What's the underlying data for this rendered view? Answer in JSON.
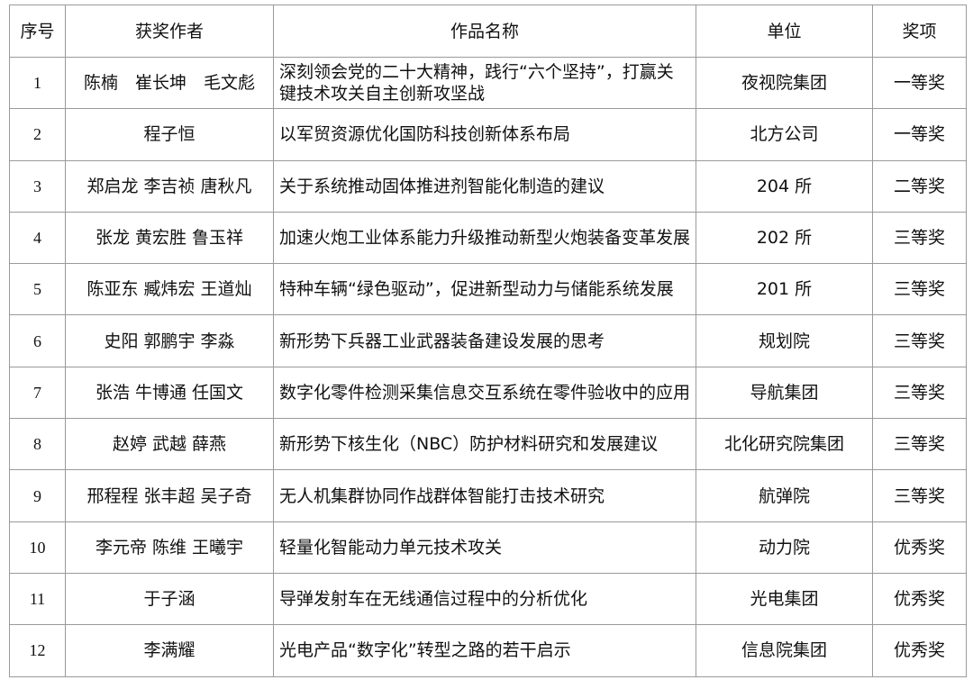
{
  "headers": [
    "序号",
    "获奖作者",
    "作品名称",
    "单位",
    "奖项"
  ],
  "rows": [
    {
      "no": "1",
      "authors": "陈楠　崔长坤　毛文彪",
      "title": "深刻领会党的二十大精神，践行“六个坚持”，打赢关键技术攻关自主创新攻坚战",
      "unit": "夜视院集团",
      "award": "一等奖"
    },
    {
      "no": "2",
      "authors": "程子恒",
      "title": "以军贸资源优化国防科技创新体系布局",
      "unit": "北方公司",
      "award": "一等奖"
    },
    {
      "no": "3",
      "authors": "郑启龙 李吉祯 唐秋凡",
      "title": "关于系统推动固体推进剂智能化制造的建议",
      "unit": "204 所",
      "award": "二等奖"
    },
    {
      "no": "4",
      "authors": "张龙 黄宏胜 鲁玉祥",
      "title": "加速火炮工业体系能力升级推动新型火炮装备变革发展",
      "unit": "202 所",
      "award": "三等奖"
    },
    {
      "no": "5",
      "authors": "陈亚东 臧炜宏 王道灿",
      "title": "特种车辆“绿色驱动”，促进新型动力与储能系统发展",
      "unit": "201 所",
      "award": "三等奖"
    },
    {
      "no": "6",
      "authors": "史阳 郭鹏宇 李淼",
      "title": "新形势下兵器工业武器装备建设发展的思考",
      "unit": "规划院",
      "award": "三等奖"
    },
    {
      "no": "7",
      "authors": "张浩 牛博通 任国文",
      "title": "数字化零件检测采集信息交互系统在零件验收中的应用",
      "unit": "导航集团",
      "award": "三等奖"
    },
    {
      "no": "8",
      "authors": "赵婷 武越 薛燕",
      "title": "新形势下核生化（NBC）防护材料研究和发展建议",
      "unit": "北化研究院集团",
      "award": "三等奖"
    },
    {
      "no": "9",
      "authors": "邢程程 张丰超 吴子奇",
      "title": "无人机集群协同作战群体智能打击技术研究",
      "unit": "航弹院",
      "award": "三等奖"
    },
    {
      "no": "10",
      "authors": "李元帝 陈维 王曦宇",
      "title": "轻量化智能动力单元技术攻关",
      "unit": "动力院",
      "award": "优秀奖"
    },
    {
      "no": "11",
      "authors": "于子涵",
      "title": "导弹发射车在无线通信过程中的分析优化",
      "unit": "光电集团",
      "award": "优秀奖"
    },
    {
      "no": "12",
      "authors": "李满耀",
      "title": "光电产品“数字化”转型之路的若干启示",
      "unit": "信息院集团",
      "award": "优秀奖"
    }
  ]
}
